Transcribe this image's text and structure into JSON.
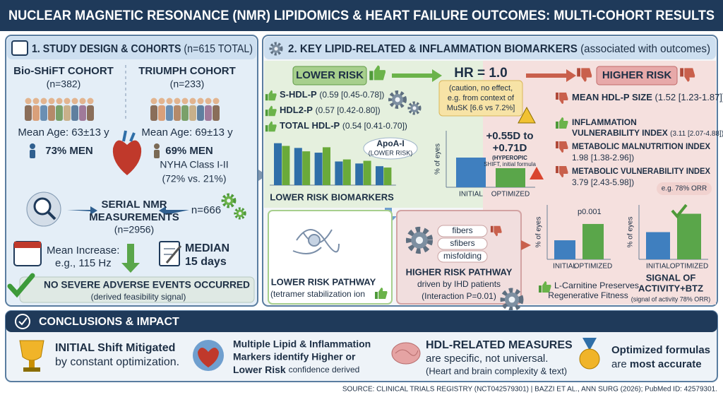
{
  "header": {
    "title": "NUCLEAR MAGNETIC RESONANCE (NMR) LIPIDOMICS & HEART FAILURE OUTCOMES: MULTI-COHORT RESULTS"
  },
  "panel1": {
    "title": "1. STUDY DESIGN & COHORTS",
    "title_note": "(n=615 TOTAL)",
    "cohorts": [
      {
        "name": "Bio-SHiFT COHORT",
        "n": "(n=382)",
        "age": "Mean Age: 63±13 y",
        "men": "73% MEN"
      },
      {
        "name": "TRIUMPH COHORT",
        "n": "(n=233)",
        "age": "Mean Age: 69±13 y",
        "men": "69% MEN",
        "class": "NYHA Class I-II",
        "class_note": "(72% vs. 21%)"
      }
    ],
    "serial": [
      "SERIAL NMR",
      "MEASUREMENTS",
      "(n=2956)"
    ],
    "subset": "n=666",
    "increase": [
      "Mean Increase:",
      "e.g., 115 Hz"
    ],
    "median": [
      "MEDIAN",
      "15 days"
    ],
    "safety": "NO SEVERE ADVERSE EVENTS OCCURRED",
    "safety_note": "(derived feasibility signal)"
  },
  "panel2": {
    "title": "2. KEY LIPID-RELATED & INFLAMMATION BIOMARKERS",
    "title_note": "(associated with outcomes)",
    "lower_risk": "LOWER RISK",
    "hr": "HR = 1.0",
    "hr_note": [
      "(caution, no effect,",
      "e.g. from context of",
      "MuSK [6.6 vs 7.2%]"
    ],
    "higher_risk": "HIGHER RISK",
    "lower_items": [
      {
        "name": "S-HDL-P",
        "stat": "(0.59 [0.45-0.78])"
      },
      {
        "name": "HDL2-P",
        "stat": "(0.57 [0.42-0.80])"
      },
      {
        "name": "TOTAL HDL-P",
        "stat": "(0.54 [0.41-0.70])"
      }
    ],
    "apoa": [
      "ApoA-I",
      "(LOWER RISK)"
    ],
    "biomarker_chart": {
      "label": "LOWER RISK BIOMARKERS",
      "values": [
        62,
        58,
        55,
        50,
        48,
        56,
        35,
        38,
        32,
        36,
        28,
        26
      ],
      "colors": [
        "#2f6fa8",
        "#6aaa3a",
        "#2f6fa8",
        "#6aaa3a",
        "#2f6fa8",
        "#6aaa3a",
        "#2f6fa8",
        "#6aaa3a",
        "#2f6fa8",
        "#6aaa3a",
        "#2f6fa8",
        "#6aaa3a"
      ],
      "ylim": [
        0,
        70
      ]
    },
    "eyes_chart_1": {
      "ylabel": "% of eyes",
      "categories": [
        "INITIAL",
        "OPTIMIZED"
      ],
      "values": [
        42,
        27
      ],
      "colors": [
        "#3f7fbf",
        "#5aa64a"
      ],
      "ylim": [
        0,
        80
      ]
    },
    "shift": [
      "+0.55D to",
      "+0.71D"
    ],
    "shift_note": [
      "(HYPEROPIC",
      "SHIFT, initial formula"
    ],
    "higher_items": [
      {
        "name": [
          "MEAN HDL-P SIZE"
        ],
        "stat": "(1.52 [1.23-1.87])"
      },
      {
        "name": [
          "INFLAMMATION",
          "VULNERABILITY INDEX"
        ],
        "stat": "(3.11 [2.07-4.88])"
      },
      {
        "name": [
          "METABOLIC MALNUTRITION INDEX"
        ],
        "stat": "1.98 [1.38-2.96])"
      },
      {
        "name": [
          "METABOLIC VULNERABILITY INDEX"
        ],
        "stat": "3.79 [2.43-5.98])"
      }
    ],
    "orr_note": "e.g. 78% ORR",
    "lower_pathway": [
      "LOWER RISK PATHWAY",
      "(tetramer stabilization ion"
    ],
    "higher_pathway": {
      "labels": [
        "fibers",
        "sfibers",
        "misfolding"
      ],
      "title": "HIGHER RISK PATHWAY",
      "lines": [
        "driven by IHD patients",
        "(Interaction P=0.01)"
      ]
    },
    "eyes_chart_2": {
      "ylabel": "% of eyes",
      "categories": [
        "INITIAL",
        "OPTIMIZED"
      ],
      "values": [
        28,
        52
      ],
      "colors": [
        "#3f7fbf",
        "#5aa64a"
      ],
      "ylim": [
        0,
        80
      ],
      "annotation": "p0.001"
    },
    "eyes_chart_3": {
      "ylabel": "% of eyes",
      "categories": [
        "INITIAL",
        "OPTIMIZED"
      ],
      "values": [
        40,
        67
      ],
      "colors": [
        "#3f7fbf",
        "#5aa64a"
      ],
      "ylim": [
        0,
        80
      ]
    },
    "carnitine": [
      "L-Carnitine Preserves",
      "Regenerative Fitness"
    ],
    "signal": [
      "SIGNAL OF",
      "ACTIVITY+BTZ",
      "(signal of activity 78% ORR)"
    ]
  },
  "conclusions": {
    "title": "CONCLUSIONS & IMPACT",
    "items": [
      {
        "lines": [
          "INITIAL Shift Mitigated",
          "by constant optimization."
        ]
      },
      {
        "lines": [
          "Multiple Lipid & Inflammation",
          "Markers identify Higher or",
          "Lower Risk",
          "confidence derived"
        ]
      },
      {
        "lines": [
          "HDL-RELATED MEASURES",
          "are specific, not universal.",
          "(Heart and brain complexity & text)"
        ]
      },
      {
        "lines": [
          "Optimized formulas",
          "are",
          "most accurate"
        ]
      }
    ]
  },
  "source": "SOURCE: CLINICAL TRIALS REGISTRY (NCT042579301) | BAZZI ET AL., ANN SURG (2026); PubMed ID: 42579301."
}
